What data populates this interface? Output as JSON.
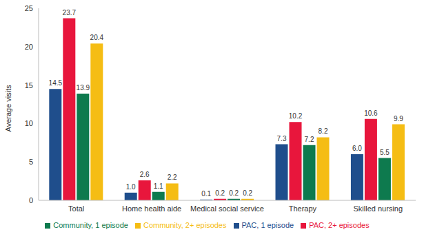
{
  "chart_data": {
    "type": "bar",
    "y_label": "Average visits",
    "categories": [
      "Total",
      "Home health aide",
      "Medical social service",
      "Therapy",
      "Skilled nursing"
    ],
    "series": [
      {
        "name": "PAC, 1 episode",
        "color": "#1f4e8c",
        "values": [
          14.5,
          1.0,
          0.1,
          7.3,
          6.0
        ],
        "value_labels": [
          "14.5",
          "1.0",
          "0.1",
          "7.3",
          "6.0"
        ]
      },
      {
        "name": "PAC, 2+ episodes",
        "color": "#e8163c",
        "values": [
          23.7,
          2.6,
          0.2,
          10.2,
          10.6
        ],
        "value_labels": [
          "23.7",
          "2.6",
          "0.2",
          "10.2",
          "10.6"
        ]
      },
      {
        "name": "Community, 1 episode",
        "color": "#0e7a4e",
        "values": [
          13.9,
          1.1,
          0.2,
          7.2,
          5.5
        ],
        "value_labels": [
          "13.9",
          "1.1",
          "0.2",
          "7.2",
          "5.5"
        ]
      },
      {
        "name": "Community, 2+ episodes",
        "color": "#f5bd14",
        "values": [
          20.4,
          2.2,
          0.2,
          8.2,
          9.9
        ],
        "value_labels": [
          "20.4",
          "2.2",
          "0.2",
          "8.2",
          "9.9"
        ]
      }
    ],
    "ylim": [
      0,
      25
    ],
    "yticks": [
      0,
      5,
      10,
      15,
      20,
      25
    ],
    "grid": false,
    "legend": "bottom",
    "data_labels": true
  }
}
